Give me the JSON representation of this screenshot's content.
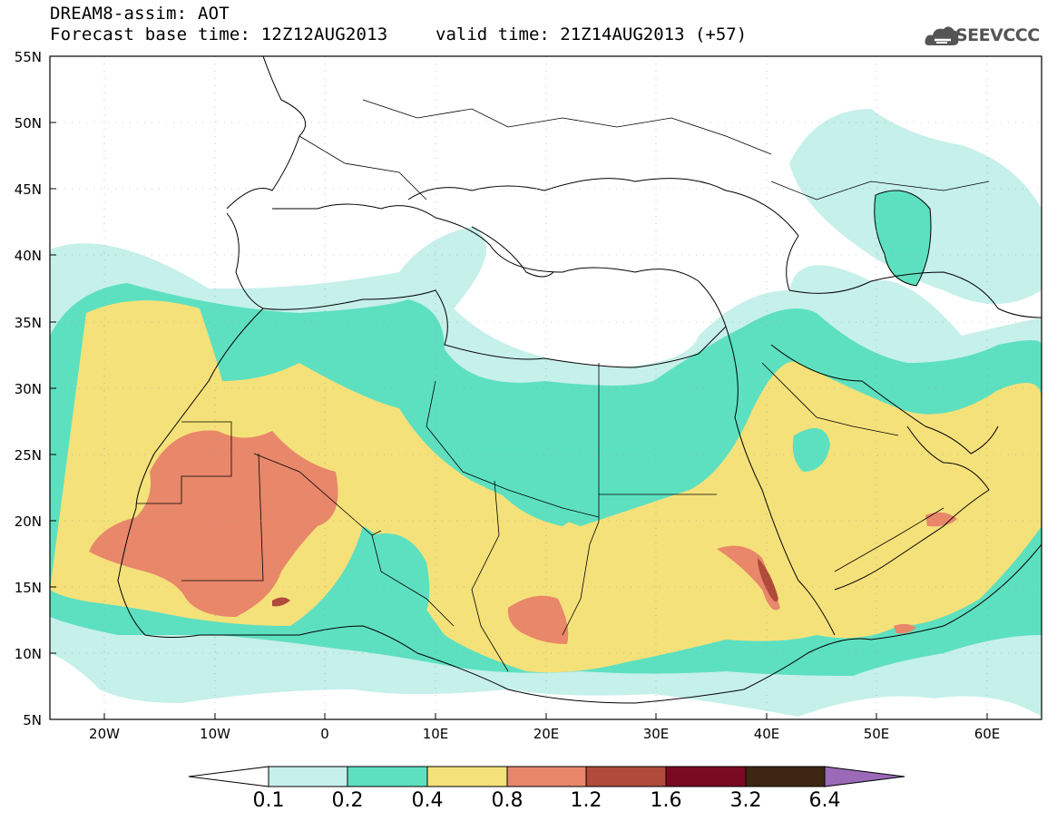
{
  "header": {
    "line1": "DREAM8-assim: AOT",
    "line2_base": "Forecast base time: 12Z12AUG2013",
    "line2_valid": "valid time: 21Z14AUG2013 (+57)",
    "logo_text": "SEEVCCC"
  },
  "map": {
    "lat_labels": [
      "55N",
      "50N",
      "45N",
      "40N",
      "35N",
      "30N",
      "25N",
      "20N",
      "15N",
      "10N",
      "5N"
    ],
    "lon_labels": [
      "20W",
      "10W",
      "0",
      "10E",
      "20E",
      "30E",
      "40E",
      "50E",
      "60E"
    ],
    "variable": "Aerosol Optical Thickness",
    "region": "North Africa, Mediterranean, Middle East"
  },
  "colorbar": {
    "levels": [
      "0.1",
      "0.2",
      "0.4",
      "0.8",
      "1.2",
      "1.6",
      "3.2",
      "6.4"
    ],
    "colors": {
      "below": "#ffffff",
      "c1": "#c6f0ea",
      "c2": "#5de0c0",
      "c3": "#f5e17a",
      "c4": "#e8876a",
      "c5": "#b04a3a",
      "c6": "#7a0a22",
      "c7": "#3d2712",
      "above": "#9a6ab8"
    }
  }
}
